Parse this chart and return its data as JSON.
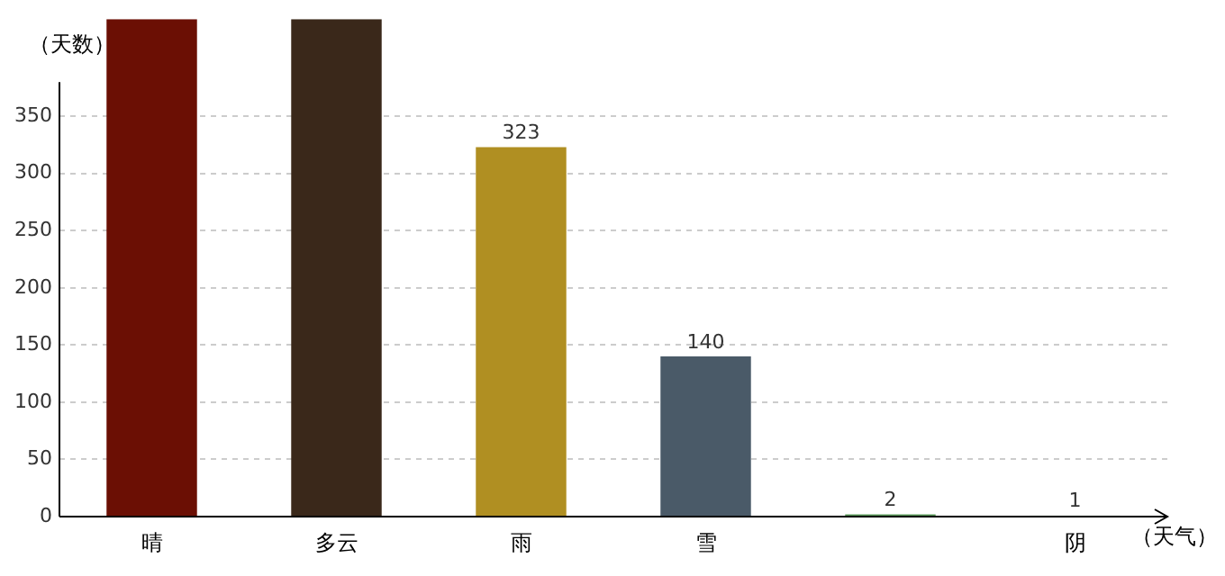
{
  "chart_data": {
    "type": "bar",
    "xlabel": "（天气）",
    "ylabel": "（天数）",
    "categories": [
      "晴",
      "多云",
      "雨",
      "雪",
      null,
      "阴"
    ],
    "values": [
      435,
      435,
      323,
      140,
      2,
      1
    ],
    "colors": [
      "#6b0f04",
      "#3a281a",
      "#b08f22",
      "#4a5a68",
      "#5a9a5a",
      "#dce8dc"
    ],
    "value_labels": [
      null,
      null,
      "323",
      "140",
      "2",
      "1"
    ],
    "ylim": [
      0,
      435
    ],
    "yticks": [
      0,
      50,
      100,
      150,
      200,
      250,
      300,
      350
    ],
    "grid": "y",
    "legend": false
  }
}
